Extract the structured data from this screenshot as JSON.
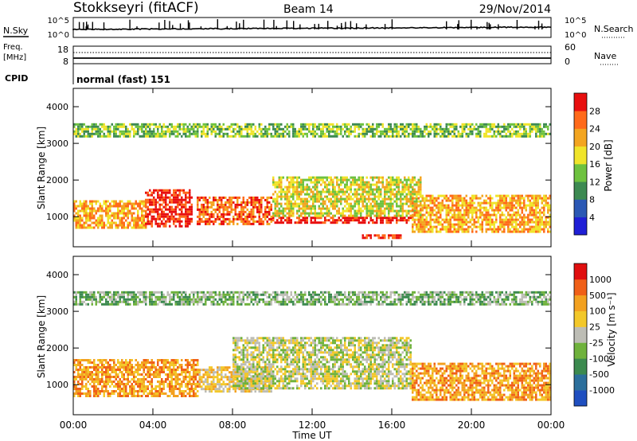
{
  "header": {
    "station": "Stokkseyri (fitACF)",
    "beam": "Beam 14",
    "date": "29/Nov/2014"
  },
  "top_panels": {
    "nsky_label": "N.Sky",
    "nsky_ticks": [
      "10^5",
      "10^0"
    ],
    "nsearch_label": "N.Search",
    "nsearch_ticks": [
      "10^5",
      "10^0"
    ],
    "freq_label_line1": "Freq.",
    "freq_label_line2": "[MHz]",
    "freq_ticks": [
      "18",
      "8"
    ],
    "nave_label": "Nave",
    "nave_ticks": [
      "60",
      "0"
    ],
    "cpid_label": "CPID",
    "cpid_value": "normal (fast) 151"
  },
  "axes": {
    "ylabel": "Slant Range [km]",
    "xlabel": "Time UT",
    "y_ticks": [
      "1000",
      "2000",
      "3000",
      "4000"
    ],
    "x_ticks": [
      "00:00",
      "04:00",
      "08:00",
      "12:00",
      "16:00",
      "20:00",
      "00:00"
    ]
  },
  "chart_data": [
    {
      "type": "heatmap",
      "title": "Power",
      "colorbar_label": "Power [dB]",
      "colorbar_ticks": [
        "4",
        "8",
        "12",
        "16",
        "20",
        "24",
        "28"
      ],
      "colorbar_colors": [
        "#1f1fd6",
        "#2b58b4",
        "#3d8a52",
        "#6ec23f",
        "#f0e42a",
        "#f3a520",
        "#ff6a1a",
        "#e80f0f"
      ],
      "x_range_hours": [
        0,
        24
      ],
      "y_range_km": [
        180,
        4500
      ],
      "regions": [
        {
          "t0": 0.0,
          "t1": 3.7,
          "r0": 700,
          "r1": 1450,
          "level": 5
        },
        {
          "t0": 3.6,
          "t1": 6.0,
          "r0": 750,
          "r1": 1750,
          "level": 7
        },
        {
          "t0": 6.2,
          "t1": 10.0,
          "r0": 800,
          "r1": 1550,
          "level": 6
        },
        {
          "t0": 10.0,
          "t1": 17.0,
          "r0": 820,
          "r1": 1000,
          "level": 7
        },
        {
          "t0": 10.0,
          "t1": 17.5,
          "r0": 1000,
          "r1": 2100,
          "level": 4
        },
        {
          "t0": 14.5,
          "t1": 16.5,
          "r0": 420,
          "r1": 520,
          "level": 7
        },
        {
          "t0": 17.0,
          "t1": 24.0,
          "r0": 600,
          "r1": 1600,
          "level": 5
        },
        {
          "t0": 0.0,
          "t1": 24.0,
          "r0": 3200,
          "r1": 3550,
          "level": 3
        }
      ]
    },
    {
      "type": "heatmap",
      "title": "Velocity",
      "colorbar_label": "Velocity [m s⁻¹]",
      "colorbar_ticks": [
        "1000",
        "500",
        "100",
        "25",
        "-25",
        "-100",
        "-500",
        "-1000"
      ],
      "colorbar_colors": [
        "#1f4fc0",
        "#2c6f9c",
        "#3c8a4f",
        "#6fb23c",
        "#bdbdb5",
        "#f3c82a",
        "#f3a120",
        "#f06018",
        "#e00f0f"
      ],
      "x_range_hours": [
        0,
        24
      ],
      "y_range_km": [
        180,
        4500
      ],
      "regions": [
        {
          "t0": 0.0,
          "t1": 6.3,
          "r0": 700,
          "r1": 1700,
          "level": 6
        },
        {
          "t0": 6.3,
          "t1": 10.0,
          "r0": 800,
          "r1": 1500,
          "level": 5
        },
        {
          "t0": 8.0,
          "t1": 17.0,
          "r0": 900,
          "r1": 2300,
          "level": 4
        },
        {
          "t0": 17.0,
          "t1": 24.0,
          "r0": 600,
          "r1": 1600,
          "level": 6
        },
        {
          "t0": 0.0,
          "t1": 24.0,
          "r0": 3200,
          "r1": 3550,
          "level": 3
        }
      ]
    }
  ]
}
